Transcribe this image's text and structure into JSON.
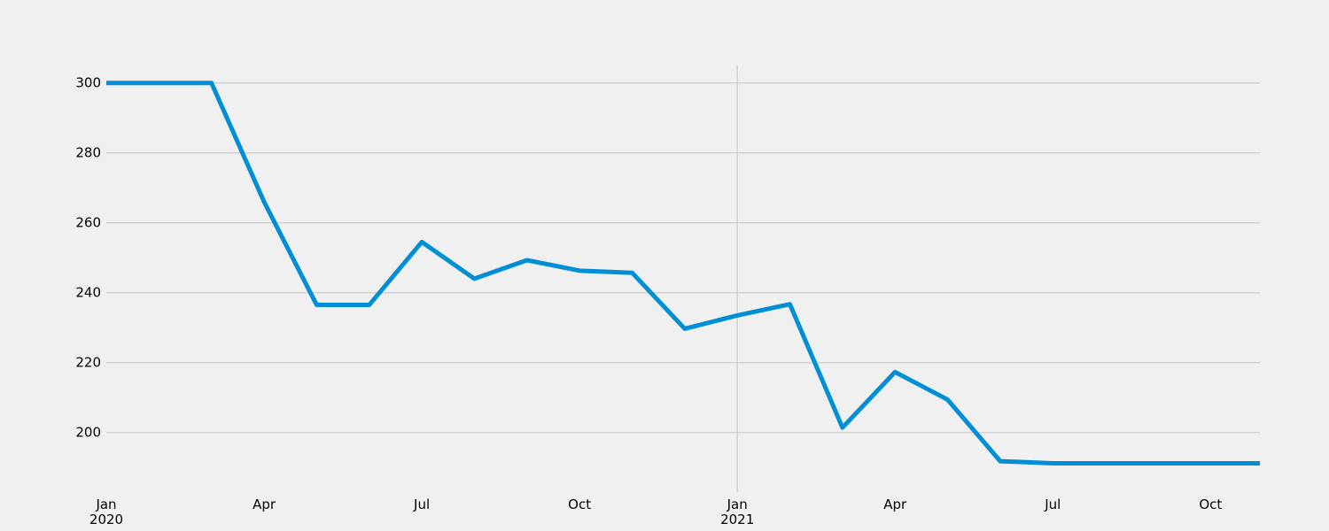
{
  "chart_data": {
    "type": "line",
    "title": "",
    "xlabel": "",
    "ylabel": "",
    "x": [
      "2020-01",
      "2020-02",
      "2020-03",
      "2020-04",
      "2020-05",
      "2020-06",
      "2020-07",
      "2020-08",
      "2020-09",
      "2020-10",
      "2020-11",
      "2020-12",
      "2021-01",
      "2021-02",
      "2021-03",
      "2021-04",
      "2021-05",
      "2021-06",
      "2021-07",
      "2021-08",
      "2021-09",
      "2021-10",
      "2021-11"
    ],
    "series": [
      {
        "color": "#008fd5",
        "values": [
          300,
          300,
          300,
          266,
          236.5,
          236.5,
          254.5,
          244,
          249.3,
          246.3,
          245.7,
          229.7,
          233.5,
          236.7,
          201.4,
          217.3,
          209.4,
          191.8,
          191.2,
          191.2,
          191.2,
          191.2,
          191.2
        ]
      }
    ],
    "ylim": [
      186,
      305
    ],
    "yticks": [
      200,
      220,
      240,
      260,
      280,
      300
    ],
    "ytick_labels": [
      "200",
      "220",
      "240",
      "260",
      "280",
      "300"
    ],
    "xticks": [
      {
        "x": "2020-01",
        "label": "Jan",
        "sublabel": "2020"
      },
      {
        "x": "2020-04",
        "label": "Apr",
        "sublabel": ""
      },
      {
        "x": "2020-07",
        "label": "Jul",
        "sublabel": ""
      },
      {
        "x": "2020-10",
        "label": "Oct",
        "sublabel": ""
      },
      {
        "x": "2021-01",
        "label": "Jan",
        "sublabel": "2021"
      },
      {
        "x": "2021-04",
        "label": "Apr",
        "sublabel": ""
      },
      {
        "x": "2021-07",
        "label": "Jul",
        "sublabel": ""
      },
      {
        "x": "2021-10",
        "label": "Oct",
        "sublabel": ""
      }
    ],
    "grid": true,
    "vertical_gridlines": [
      "2021-01"
    ],
    "legend": "none"
  }
}
